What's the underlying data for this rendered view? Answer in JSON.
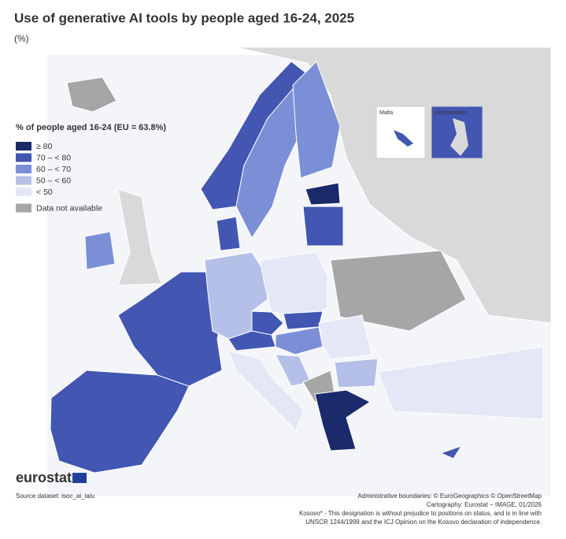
{
  "title": "Use of generative AI tools by people aged 16-24, 2025",
  "subtitle": "(%)",
  "legend": {
    "title": "% of people aged 16-24 (EU = 63.8%)",
    "items": [
      {
        "label": "≥ 80",
        "color": "#1b2a6b"
      },
      {
        "label": "70 – < 80",
        "color": "#4256b2"
      },
      {
        "label": "60 – < 70",
        "color": "#7b8fd6"
      },
      {
        "label": "50 – < 60",
        "color": "#b5c0e8"
      },
      {
        "label": "< 50",
        "color": "#e4e7f5"
      },
      {
        "label": "Data not available",
        "color": "#a6a6a6"
      }
    ]
  },
  "insets": [
    "Malta",
    "Liechtenstein"
  ],
  "logo": "eurostat",
  "source": "Source dataset: isoc_ai_iaiu",
  "credits": [
    "Administrative boundaries: © EuroGeographics © OpenStreetMap",
    "Cartography: Eurostat – IMAGE, 01/2026",
    "Kosovo* - This designation is without prejudice to positions on status, and is in line with",
    "UNSCR 1244/1999 and the ICJ Opinion on the Kosovo declaration of independence."
  ]
}
